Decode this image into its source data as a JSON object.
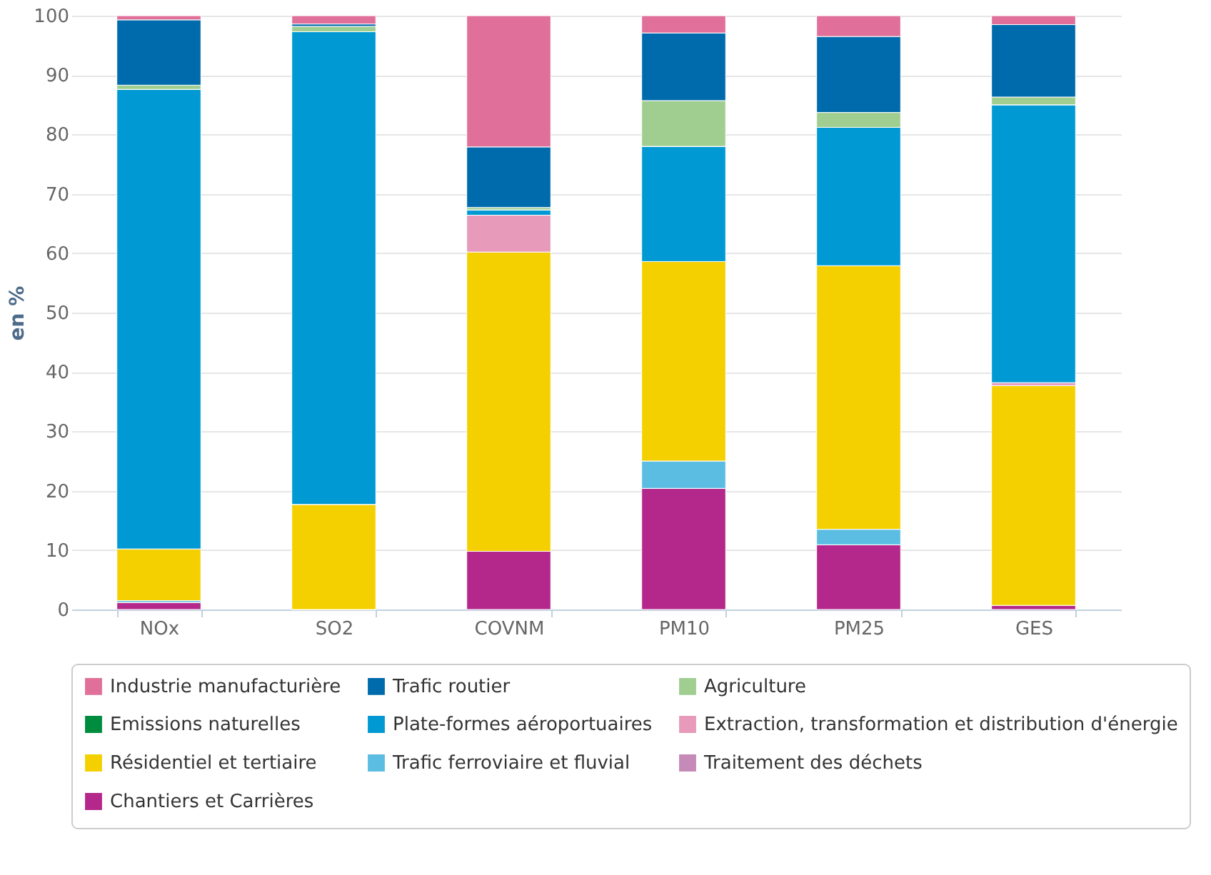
{
  "chart_data": {
    "type": "bar",
    "stacked": true,
    "ylabel": "en %",
    "categories": [
      "NOx",
      "SO2",
      "COVNM",
      "PM10",
      "PM25",
      "GES"
    ],
    "ylim": [
      0,
      100
    ],
    "yticks": [
      0,
      10,
      20,
      30,
      40,
      50,
      60,
      70,
      80,
      90,
      100
    ],
    "grid": "y",
    "legend": "bottom",
    "series": [
      {
        "name": "Chantiers et Carrières",
        "color": "#b5288b",
        "values": [
          1.2,
          0,
          9.8,
          20.4,
          10.9,
          0.7
        ]
      },
      {
        "name": "Traitement des déchets",
        "color": "#c58ab8",
        "values": [
          0,
          0,
          0,
          0,
          0,
          0
        ]
      },
      {
        "name": "Trafic ferroviaire et fluvial",
        "color": "#5bbde2",
        "values": [
          0.3,
          0,
          0,
          4.6,
          2.6,
          0
        ]
      },
      {
        "name": "Résidentiel et tertiaire",
        "color": "#f5d000",
        "values": [
          8.7,
          17.7,
          50.4,
          33.6,
          44.4,
          37.0
        ]
      },
      {
        "name": "Extraction, transformation et distribution d'énergie",
        "color": "#e79ab9",
        "values": [
          0,
          0,
          6.2,
          0,
          0,
          0.5
        ]
      },
      {
        "name": "Plate-formes aéroportuaires",
        "color": "#0099d4",
        "values": [
          77.4,
          79.6,
          0.9,
          19.4,
          23.3,
          46.8
        ]
      },
      {
        "name": "Emissions naturelles",
        "color": "#008c3e",
        "values": [
          0,
          0,
          0,
          0,
          0,
          0
        ]
      },
      {
        "name": "Agriculture",
        "color": "#a0cd90",
        "values": [
          0.7,
          0.9,
          0.4,
          7.7,
          2.5,
          1.3
        ]
      },
      {
        "name": "Trafic routier",
        "color": "#006bac",
        "values": [
          11.0,
          0.4,
          10.2,
          11.4,
          12.8,
          12.2
        ]
      },
      {
        "name": "Industrie manufacturière",
        "color": "#e07099",
        "values": [
          0.7,
          1.4,
          22.1,
          2.9,
          3.5,
          1.5
        ]
      }
    ]
  }
}
